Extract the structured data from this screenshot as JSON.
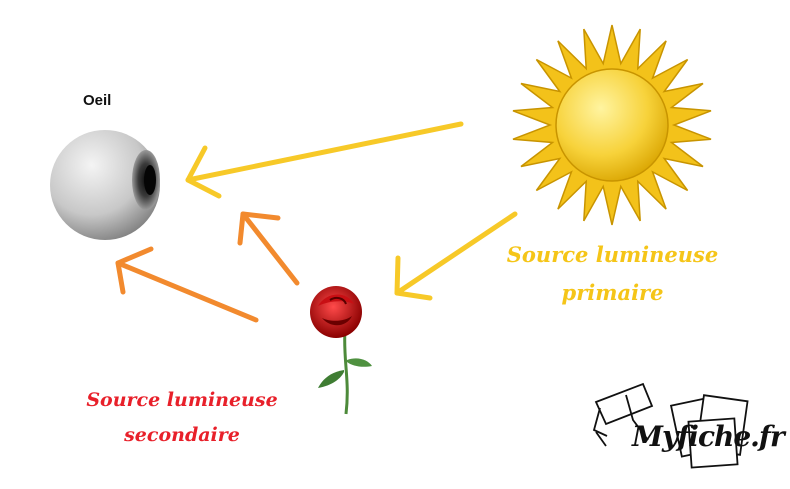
{
  "labels": {
    "eye": "Oeil",
    "primary_line1": "Source lumineuse",
    "primary_line2": "primaire",
    "secondary_line1": "Source lumineuse",
    "secondary_line2": "secondaire"
  },
  "brand": {
    "name": "Myfiche.fr"
  },
  "colors": {
    "primary_text": "#f5c518",
    "secondary_text": "#e8202a",
    "yellow_arrow": "#f7c928",
    "orange_arrow": "#f28a2e"
  },
  "icons": [
    "eye-icon",
    "sun-icon",
    "rose-icon",
    "myfiche-logo"
  ]
}
